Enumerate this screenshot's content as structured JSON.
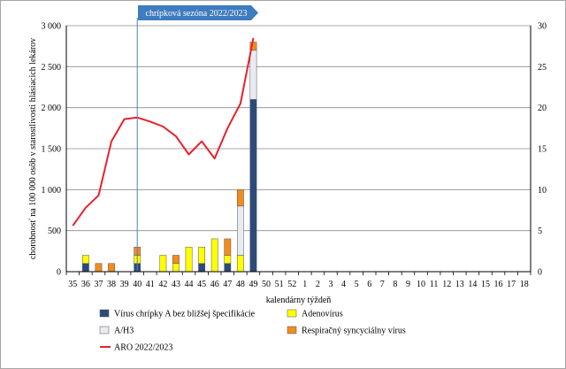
{
  "chart_data": {
    "type": "bar",
    "stacked": true,
    "banner": "chrípková sezóna 2022/2023",
    "ylabel": "chorobnosť na 100 000 osôb v starostlivosti hlásiacich lekárov",
    "xlabel": "kalendárny týždeň",
    "ylim": [
      0,
      3000
    ],
    "y_ticks": [
      "0",
      "500",
      "1 000",
      "1 500",
      "2 000",
      "2 500",
      "3 000"
    ],
    "y2lim": [
      0,
      30
    ],
    "y2_ticks": [
      "0",
      "5",
      "10",
      "15",
      "20",
      "25",
      "30"
    ],
    "grid": true,
    "season_start_week": "40",
    "categories": [
      "35",
      "36",
      "37",
      "38",
      "39",
      "40",
      "41",
      "42",
      "43",
      "44",
      "45",
      "46",
      "47",
      "48",
      "49",
      "50",
      "51",
      "52",
      "1",
      "2",
      "3",
      "4",
      "5",
      "6",
      "7",
      "8",
      "9",
      "10",
      "11",
      "12",
      "13",
      "14",
      "15",
      "16",
      "17",
      "18"
    ],
    "series": [
      {
        "name": "Vírus chrípky A bez bližšej špecifikácie",
        "color": "#2e4a7a",
        "axis": "left",
        "values": [
          0,
          100,
          0,
          0,
          0,
          100,
          0,
          0,
          0,
          0,
          100,
          0,
          100,
          0,
          2100,
          null,
          null,
          null,
          null,
          null,
          null,
          null,
          null,
          null,
          null,
          null,
          null,
          null,
          null,
          null,
          null,
          null,
          null,
          null,
          null,
          null
        ]
      },
      {
        "name": "Adenovírus",
        "color": "#ffff00",
        "axis": "left",
        "values": [
          0,
          100,
          0,
          0,
          0,
          100,
          0,
          200,
          100,
          300,
          200,
          400,
          100,
          200,
          0,
          null,
          null,
          null,
          null,
          null,
          null,
          null,
          null,
          null,
          null,
          null,
          null,
          null,
          null,
          null,
          null,
          null,
          null,
          null,
          null,
          null
        ]
      },
      {
        "name": "A/H3",
        "color": "#e8ecf2",
        "axis": "left",
        "values": [
          0,
          0,
          0,
          0,
          0,
          0,
          0,
          0,
          0,
          0,
          0,
          0,
          0,
          600,
          600,
          null,
          null,
          null,
          null,
          null,
          null,
          null,
          null,
          null,
          null,
          null,
          null,
          null,
          null,
          null,
          null,
          null,
          null,
          null,
          null,
          null
        ]
      },
      {
        "name": "Respiračný syncyciálny vírus",
        "color": "#f28c1e",
        "axis": "left",
        "values": [
          0,
          0,
          100,
          100,
          0,
          100,
          0,
          0,
          100,
          0,
          0,
          0,
          200,
          200,
          100,
          null,
          null,
          null,
          null,
          null,
          null,
          null,
          null,
          null,
          null,
          null,
          null,
          null,
          null,
          null,
          null,
          null,
          null,
          null,
          null,
          null
        ]
      },
      {
        "name": "ARO 2022/2023",
        "color": "#e8212b",
        "axis": "right",
        "type": "line",
        "values": [
          5.6,
          7.8,
          9.3,
          15.9,
          18.6,
          18.8,
          18.3,
          17.7,
          16.5,
          14.3,
          15.9,
          13.8,
          17.5,
          20.5,
          28.5,
          null,
          null,
          null,
          null,
          null,
          null,
          null,
          null,
          null,
          null,
          null,
          null,
          null,
          null,
          null,
          null,
          null,
          null,
          null,
          null,
          null
        ]
      }
    ]
  }
}
